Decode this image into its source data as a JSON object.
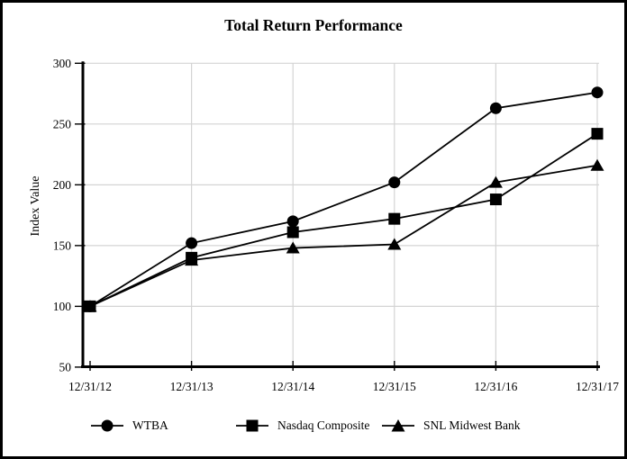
{
  "chart_data": {
    "type": "line",
    "title": "Total Return Performance",
    "xlabel": "",
    "ylabel": "Index Value",
    "categories": [
      "12/31/12",
      "12/31/13",
      "12/31/14",
      "12/31/15",
      "12/31/16",
      "12/31/17"
    ],
    "series": [
      {
        "name": "WTBA",
        "marker": "circle",
        "values": [
          100,
          152,
          170,
          202,
          263,
          276
        ]
      },
      {
        "name": "Nasdaq Composite",
        "marker": "square",
        "values": [
          100,
          140,
          161,
          172,
          188,
          242
        ]
      },
      {
        "name": "SNL Midwest Bank",
        "marker": "triangle",
        "values": [
          100,
          138,
          148,
          151,
          202,
          216
        ]
      }
    ],
    "ylim": [
      50,
      300
    ],
    "yticks": [
      50,
      100,
      150,
      200,
      250,
      300
    ],
    "grid": true,
    "legend_position": "bottom",
    "colors": {
      "series": "#000000",
      "grid": "#d4d4d4",
      "axis": "#000000",
      "background": "#ffffff",
      "border": "#000000"
    }
  }
}
